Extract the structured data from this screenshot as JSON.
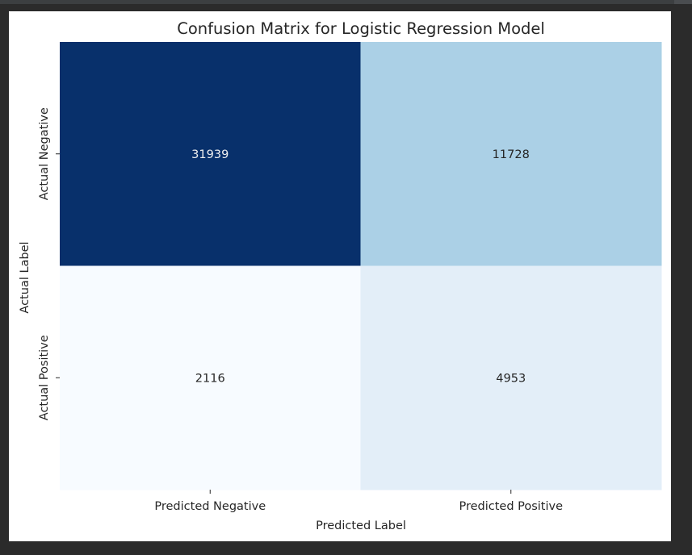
{
  "chart_data": {
    "type": "heatmap",
    "title": "Confusion Matrix for Logistic Regression Model",
    "xlabel": "Predicted Label",
    "ylabel": "Actual Label",
    "x_categories": [
      "Predicted Negative",
      "Predicted Positive"
    ],
    "y_categories": [
      "Actual Negative",
      "Actual Positive"
    ],
    "values": [
      [
        31939,
        11728
      ],
      [
        2116,
        4953
      ]
    ],
    "colormap": "Blues",
    "colorbar": false,
    "annotated": true,
    "cell_colors": [
      [
        "#08306b",
        "#abd0e6"
      ],
      [
        "#f7fbff",
        "#e3eef8"
      ]
    ],
    "text_colors": [
      [
        "#f0f0f0",
        "#262626"
      ],
      [
        "#262626",
        "#262626"
      ]
    ]
  }
}
